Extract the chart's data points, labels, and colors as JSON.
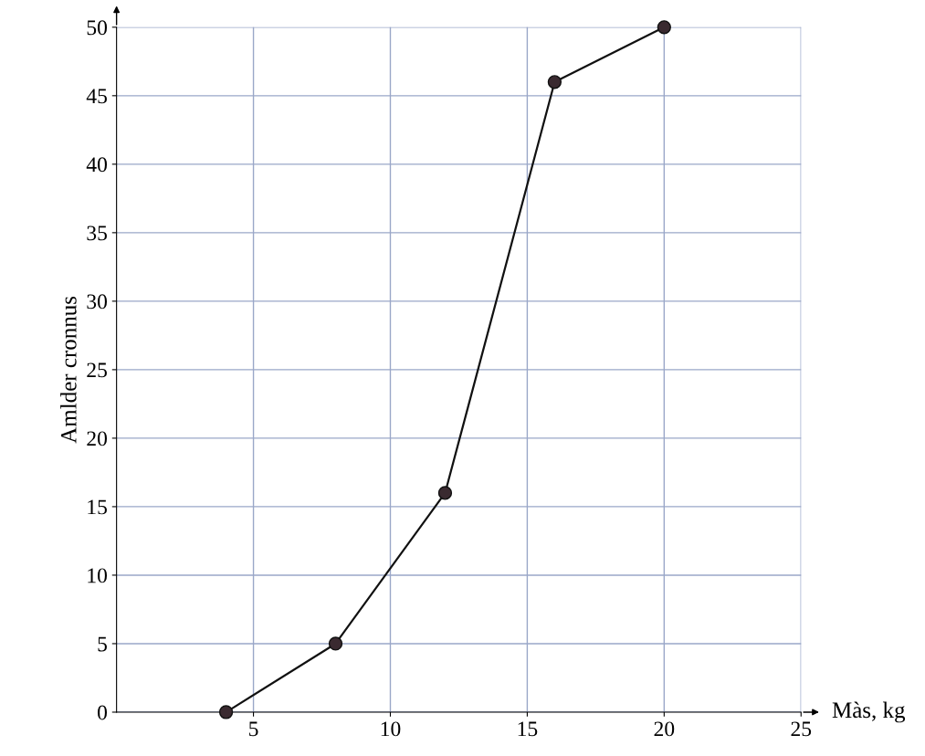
{
  "chart_data": {
    "type": "line",
    "xlabel": "Màs, kg",
    "ylabel": "Amlder cronnus",
    "x": [
      4,
      8,
      12,
      16,
      20
    ],
    "series": [
      {
        "color": "#111111",
        "values": [
          0,
          5,
          16,
          46,
          50
        ]
      }
    ],
    "xlim": [
      0,
      25
    ],
    "ylim": [
      0,
      50
    ],
    "xticks": [
      5,
      10,
      15,
      20,
      25
    ],
    "yticks": [
      0,
      5,
      10,
      15,
      20,
      25,
      30,
      35,
      40,
      45,
      50
    ],
    "grid": true,
    "marker": "circle",
    "line_style": "solid",
    "legend": false
  }
}
